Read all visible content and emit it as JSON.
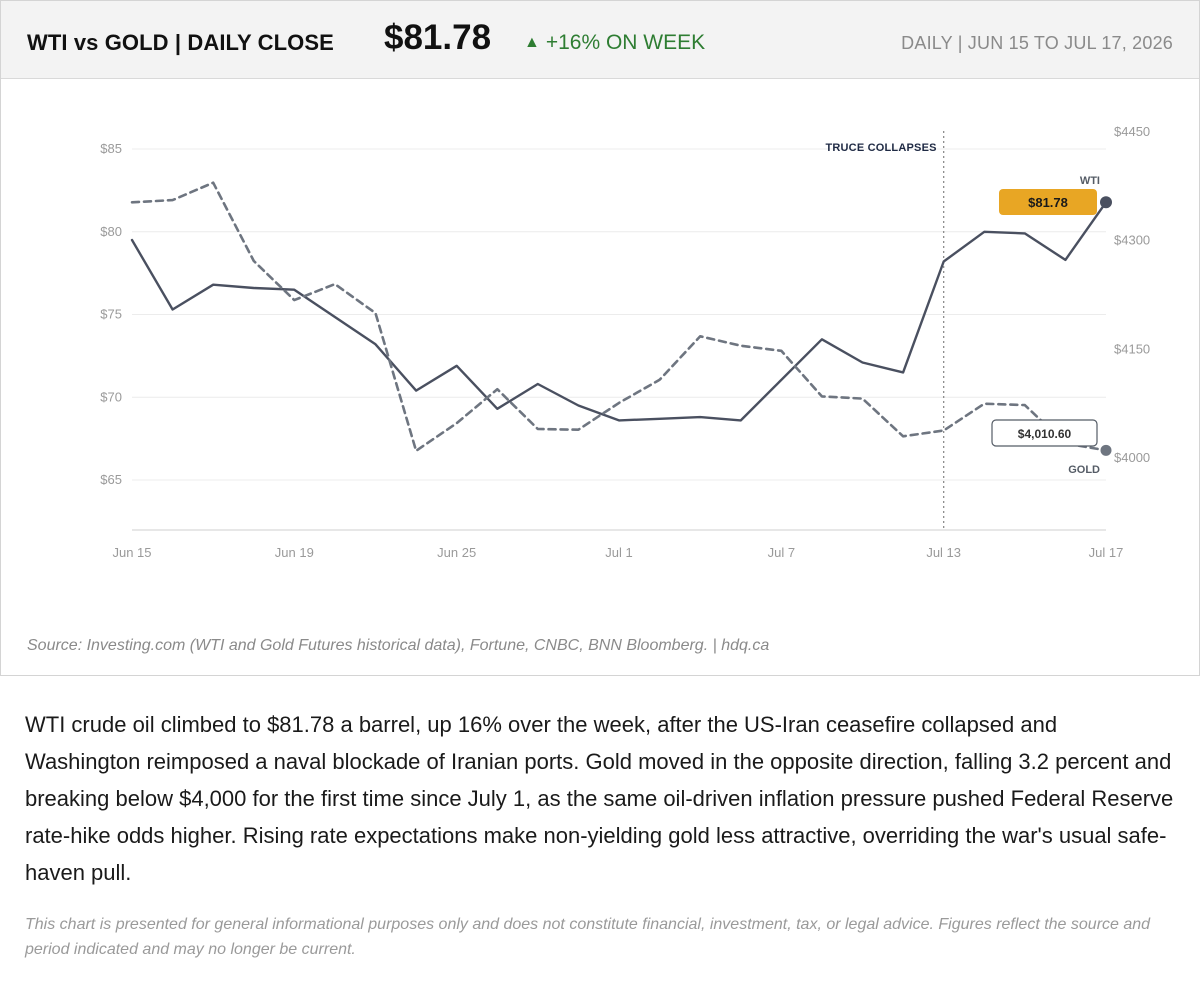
{
  "header": {
    "title": "WTI vs GOLD | DAILY CLOSE",
    "price": "$81.78",
    "change_arrow": "▲",
    "change_text": "+16% ON WEEK",
    "range": "DAILY  |  JUN 15 TO JUL 17, 2026",
    "change_color": "#2e7d32"
  },
  "chart_data": {
    "type": "line",
    "x_tick_labels": [
      "Jun 15",
      "Jun 19",
      "Jun 25",
      "Jul 1",
      "Jul 7",
      "Jul 13",
      "Jul 17"
    ],
    "left_axis": {
      "ticks": [
        "$85",
        "$80",
        "$75",
        "$70",
        "$65"
      ],
      "tick_values": [
        85,
        80,
        75,
        70,
        65
      ],
      "range": [
        62,
        85.5
      ]
    },
    "right_axis": {
      "ticks": [
        "$4450",
        "$4300",
        "$4150",
        "$4000"
      ],
      "tick_values": [
        4450,
        4300,
        4150,
        4000
      ],
      "range": [
        3900,
        4450
      ]
    },
    "x_day_range": [
      0,
      36
    ],
    "grid": "horizontal",
    "series": [
      {
        "name": "WTI",
        "axis": "left",
        "style": "solid",
        "color": "#4a5060",
        "x": [
          0,
          1.5,
          3,
          4.5,
          6,
          9,
          10.5,
          12,
          13.5,
          15,
          16.5,
          18,
          19.5,
          21,
          22.5,
          25.5,
          27,
          28.5,
          30,
          31.5,
          33,
          34.5,
          36
        ],
        "values": [
          79.5,
          75.3,
          76.8,
          76.6,
          76.5,
          73.2,
          70.4,
          71.9,
          69.3,
          70.8,
          69.5,
          68.6,
          68.7,
          68.8,
          68.6,
          73.5,
          72.1,
          71.5,
          78.2,
          80.0,
          79.9,
          78.3,
          81.78
        ]
      },
      {
        "name": "GOLD",
        "axis": "right",
        "style": "dashed",
        "color": "#6e7580",
        "x": [
          0,
          1.5,
          3,
          4.5,
          6,
          7.5,
          9,
          10.5,
          12,
          13.5,
          15,
          16.5,
          18,
          19.5,
          21,
          22.5,
          24,
          25.5,
          27,
          28.5,
          30,
          31.5,
          33,
          34.5,
          36
        ],
        "values": [
          4353,
          4356,
          4380,
          4272,
          4218,
          4240,
          4200,
          4010,
          4048,
          4095,
          4040,
          4039,
          4076,
          4108,
          4168,
          4155,
          4148,
          4085,
          4082,
          4030,
          4038,
          4075,
          4073,
          4020,
          4010.6
        ]
      }
    ],
    "annotations": [
      {
        "text": "TRUCE COLLAPSES",
        "x": 30
      }
    ],
    "callouts": {
      "wti_value": "$81.78",
      "wti_label": "WTI",
      "gold_value": "$4,010.60",
      "gold_label": "GOLD",
      "wti_badge_color": "#e8a624"
    }
  },
  "source": "Source: Investing.com (WTI and Gold Futures historical data), Fortune, CNBC, BNN Bloomberg.  |  hdq.ca",
  "summary": "WTI crude oil climbed to $81.78 a barrel, up 16% over the week, after the US-Iran ceasefire collapsed and Washington reimposed a naval blockade of Iranian ports. Gold moved in the opposite direction, falling 3.2 percent and breaking below $4,000 for the first time since July 1, as the same oil-driven inflation pressure pushed Federal Reserve rate-hike odds higher. Rising rate expectations make non-yielding gold less attractive, overriding the war's usual safe-haven pull.",
  "disclaimer": "This chart is presented for general informational purposes only and does not constitute financial, investment, tax, or legal advice. Figures reflect the source and period indicated and may no longer be current."
}
